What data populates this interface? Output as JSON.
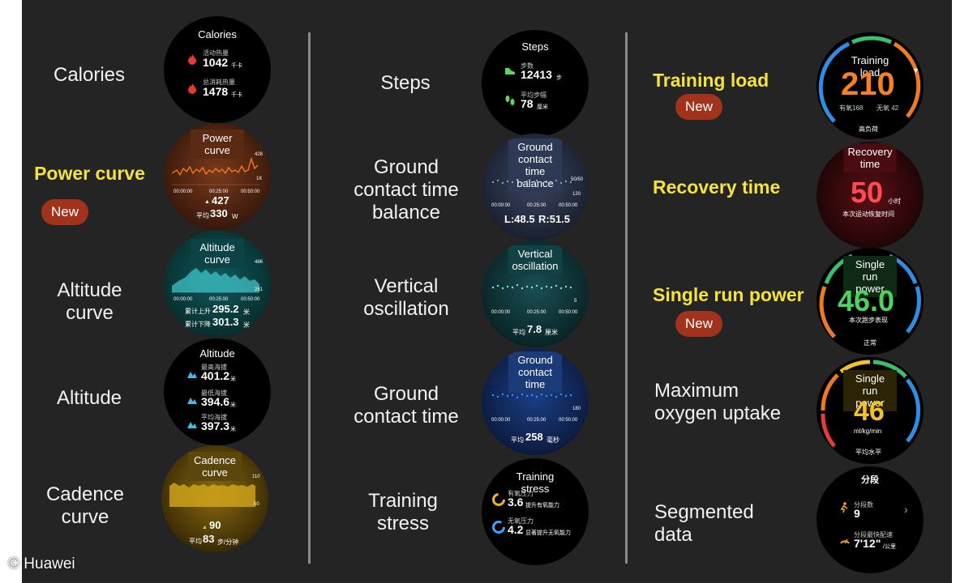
{
  "labels": {
    "calories": "Calories",
    "power_curve": "Power curve",
    "altitude_curve": "Altitude curve",
    "altitude": "Altitude",
    "cadence_curve": "Cadence\ncurve",
    "steps": "Steps",
    "gct_balance": "Ground\ncontact time\nbalance",
    "vertical_oscillation": "Vertical\noscillation",
    "gct": "Ground\ncontact time",
    "training_stress": "Training\nstress",
    "training_load": "Training load",
    "recovery_time": "Recovery time",
    "single_run_power": "Single run power",
    "max_oxygen": "Maximum\noxygen uptake",
    "segmented": "Segmented\ndata"
  },
  "new_badge": "New",
  "copyright": "© Huawei",
  "colors": {
    "highlight": "#f4e33c",
    "badge": "#a1321c"
  },
  "watches": {
    "calories": {
      "title": "Calories",
      "r1_label": "活动热量",
      "r1_value": "1042",
      "r1_unit": "千卡",
      "r2_label": "总消耗热量",
      "r2_value": "1478",
      "r2_unit": "千卡",
      "icon": "flame-icon"
    },
    "power": {
      "title": "Power curve",
      "ymax": "428",
      "ymid": "1K",
      "t0": "00:00:00",
      "t1": "00:25:00",
      "t2": "00:50:00",
      "peak": "427",
      "avg_label": "平均",
      "avg_value": "330",
      "avg_unit": "W"
    },
    "altitude_curve": {
      "title": "Altitude curve",
      "ymax": "486",
      "ymin": "281",
      "t0": "00:00:00",
      "t1": "00:25:00",
      "t2": "00:50:00",
      "up_label": "累计上升",
      "up_value": "295.2",
      "up_unit": "米",
      "down_label": "累计下降",
      "down_value": "301.3",
      "down_unit": "米"
    },
    "altitude": {
      "title": "Altitude",
      "r1_label": "最高海拔",
      "r1_value": "401.2",
      "r2_label": "最低海拔",
      "r2_value": "394.6",
      "r3_label": "平均海拔",
      "r3_value": "397.3",
      "unit": "米"
    },
    "cadence": {
      "title": "Cadence curve",
      "ymax": "110",
      "ymin": "50",
      "peak": "90",
      "avg_label": "平均",
      "avg_value": "83",
      "avg_unit": "步/分钟"
    },
    "steps": {
      "title": "Steps",
      "r1_label": "步数",
      "r1_value": "12413",
      "r1_unit": "步",
      "r2_label": "平均步幅",
      "r2_value": "78",
      "r2_unit": "厘米"
    },
    "gct_balance": {
      "title": "Ground contact\ntime balance",
      "ymax": "50/50",
      "ymin": "120",
      "t0": "00:00:00",
      "t1": "00:25:00",
      "t2": "00:50:00",
      "left": "L:48.5",
      "right": "R:51.5"
    },
    "vertical": {
      "title": "Vertical\noscillation",
      "ymin": "5",
      "t0": "00:00:00",
      "t1": "00:25:00",
      "t2": "00:50:00",
      "avg_label": "平均",
      "avg_value": "7.8",
      "avg_unit": "厘米"
    },
    "gct": {
      "title": "Ground contact\ntime",
      "ymin": "180",
      "t0": "00:00:00",
      "t1": "00:25:00",
      "t2": "00:50:00",
      "avg_label": "平均",
      "avg_value": "258",
      "avg_unit": "毫秒"
    },
    "stress": {
      "title": "Training stress",
      "r1_label": "有氧压力",
      "r1_value": "3.6",
      "r1_desc": "提升有氧能力",
      "r2_label": "无氧压力",
      "r2_value": "4.2",
      "r2_desc": "显著提升无氧能力"
    },
    "load": {
      "title": "Training load",
      "value": "210",
      "sub1": "有氧168",
      "sub2": "无氧 42",
      "level": "高负荷"
    },
    "recovery": {
      "title": "Recovery\ntime",
      "value": "50",
      "unit": "小时",
      "desc": "本次运动恢复时间"
    },
    "single_power": {
      "title": "Single run\npower",
      "value": "46.0",
      "desc": "本次跑步表现",
      "level": "正常"
    },
    "vo2": {
      "title": "Single run\npower",
      "value": "46",
      "unit": "ml/kg/min",
      "level": "平均水平"
    },
    "segment": {
      "title": "分段",
      "r1_label": "分段数",
      "r1_value": "9",
      "r2_label": "分段最快配速",
      "r2_value": "7'12\"",
      "r2_unit": "/公里"
    }
  }
}
